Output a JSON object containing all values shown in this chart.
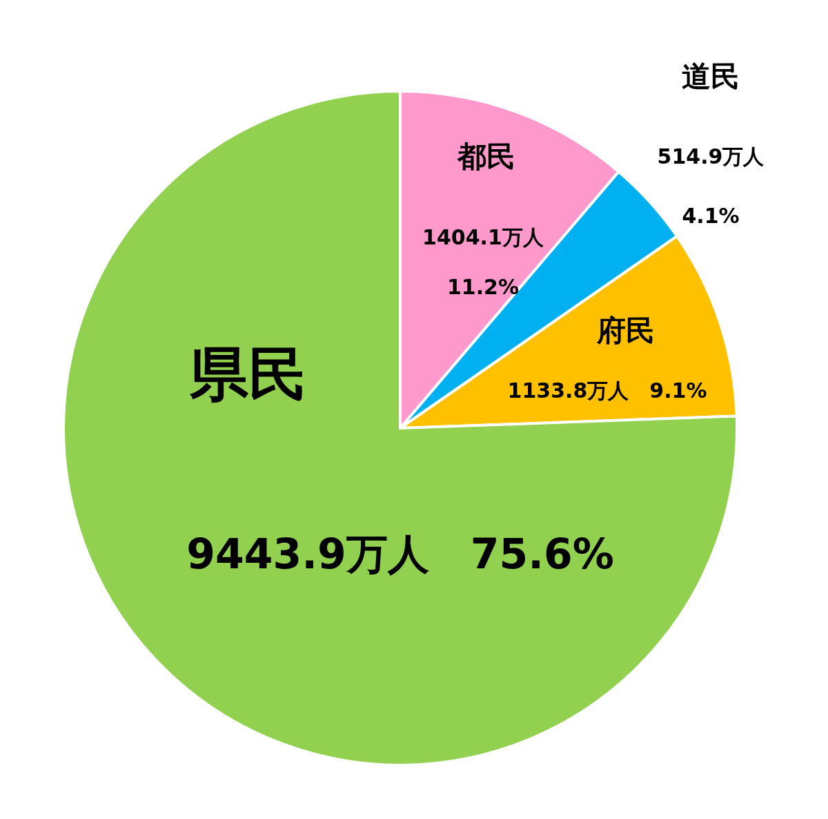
{
  "chart_data": {
    "type": "pie",
    "categories": [
      "都民",
      "道民",
      "府民",
      "県民"
    ],
    "values": [
      1404.1,
      514.9,
      1133.8,
      9443.9
    ],
    "colors": [
      "#ff99cc",
      "#00b0f0",
      "#ffc000",
      "#92d050"
    ],
    "value_labels": [
      "1404.1万人\n11.2%",
      "514.9万人\n4.1%",
      "1133.8万人　9.1%",
      "9443.9万人　75.6%"
    ]
  }
}
